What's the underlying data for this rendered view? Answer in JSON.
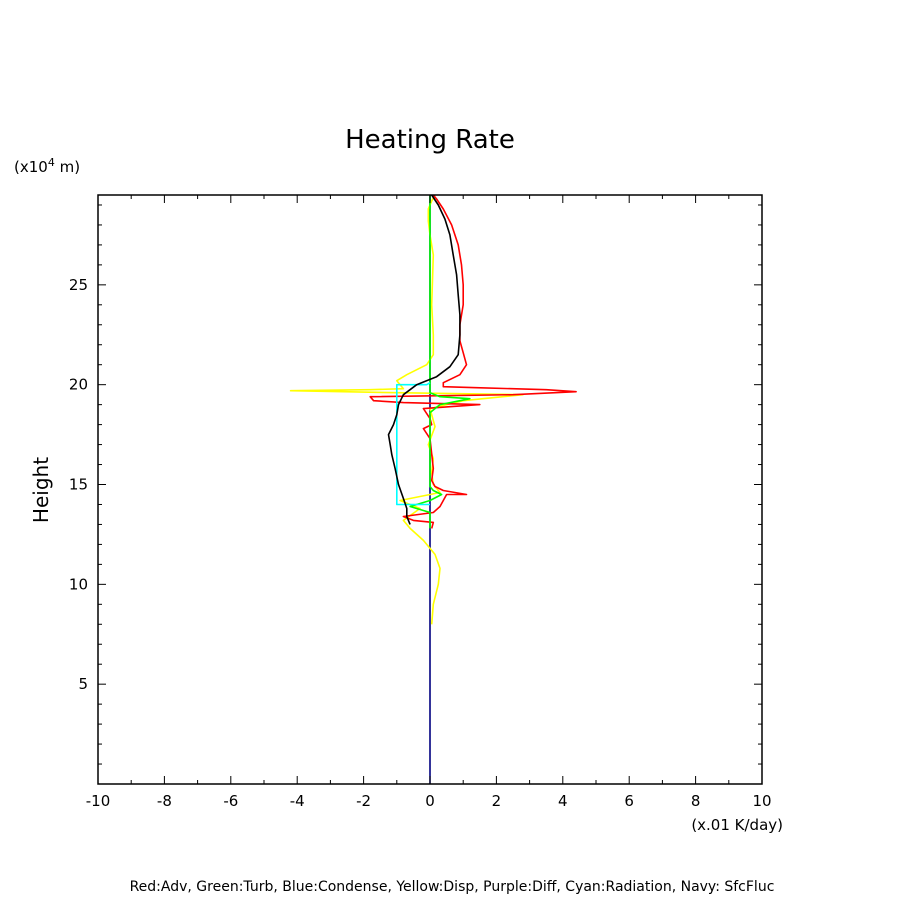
{
  "chart_data": {
    "type": "line",
    "title": "Heating Rate",
    "xlabel": "",
    "ylabel": "Height",
    "x_unit_label": "(x.01 K/day)",
    "y_unit_label_main": "(x10",
    "y_unit_label_sup": "4",
    "y_unit_label_tail": " m)",
    "xlim": [
      -10,
      10
    ],
    "ylim": [
      0,
      29.5
    ],
    "x_ticks": [
      -10,
      -8,
      -6,
      -4,
      -2,
      0,
      2,
      4,
      6,
      8,
      10
    ],
    "x_tick_labels": [
      "-10",
      "-8",
      "-6",
      "-4",
      "-2",
      "0",
      "2",
      "4",
      "6",
      "8",
      "10"
    ],
    "y_ticks": [
      5,
      10,
      15,
      20,
      25
    ],
    "y_tick_labels": [
      "5",
      "10",
      "15",
      "20",
      "25"
    ],
    "grid": false,
    "legend_note": "Red:Adv, Green:Turb, Blue:Condense, Yellow:Disp, Purple:Diff, Cyan:Radiation, Navy: SfcFluc",
    "series": [
      {
        "color": "#000080",
        "points": [
          [
            0,
            0
          ],
          [
            0,
            29.5
          ]
        ]
      },
      {
        "color": "#ffff00",
        "points": [
          [
            0.05,
            8.0
          ],
          [
            0.1,
            9.0
          ],
          [
            0.25,
            10.0
          ],
          [
            0.3,
            10.8
          ],
          [
            0.15,
            11.5
          ],
          [
            -0.2,
            12.2
          ],
          [
            -0.6,
            12.8
          ],
          [
            -0.8,
            13.2
          ],
          [
            -0.3,
            13.8
          ],
          [
            -0.9,
            14.2
          ],
          [
            0.3,
            14.6
          ],
          [
            0.1,
            15.0
          ],
          [
            0.05,
            15.6
          ],
          [
            0.1,
            16.3
          ],
          [
            -0.05,
            17.0
          ],
          [
            0.15,
            17.9
          ],
          [
            0.0,
            18.8
          ],
          [
            1.0,
            19.2
          ],
          [
            2.8,
            19.5
          ],
          [
            -1.0,
            19.6
          ],
          [
            -4.2,
            19.7
          ],
          [
            -1.8,
            19.75
          ],
          [
            -0.8,
            19.8
          ],
          [
            -1.0,
            20.2
          ],
          [
            -0.7,
            20.5
          ],
          [
            -0.1,
            21.0
          ],
          [
            0.1,
            21.5
          ],
          [
            0.1,
            22.5
          ],
          [
            0.05,
            24.0
          ],
          [
            0.1,
            26.5
          ],
          [
            0.0,
            27.5
          ],
          [
            -0.05,
            28.2
          ],
          [
            -0.05,
            28.8
          ],
          [
            0.05,
            29.2
          ],
          [
            0.15,
            29.5
          ]
        ]
      },
      {
        "color": "#ff0000",
        "points": [
          [
            0.05,
            12.8
          ],
          [
            0.1,
            13.1
          ],
          [
            -0.5,
            13.2
          ],
          [
            -0.8,
            13.4
          ],
          [
            0.1,
            13.6
          ],
          [
            0.3,
            13.9
          ],
          [
            0.4,
            14.2
          ],
          [
            0.5,
            14.5
          ],
          [
            1.1,
            14.5
          ],
          [
            0.4,
            14.7
          ],
          [
            0.15,
            14.9
          ],
          [
            0.05,
            15.2
          ],
          [
            0.1,
            15.8
          ],
          [
            0.0,
            17.3
          ],
          [
            -0.2,
            17.8
          ],
          [
            0.05,
            18.0
          ],
          [
            0.0,
            18.3
          ],
          [
            -0.2,
            18.8
          ],
          [
            1.5,
            19.0
          ],
          [
            -0.8,
            19.1
          ],
          [
            -1.7,
            19.2
          ],
          [
            -1.8,
            19.4
          ],
          [
            2.5,
            19.5
          ],
          [
            4.4,
            19.65
          ],
          [
            3.5,
            19.75
          ],
          [
            1.4,
            19.85
          ],
          [
            0.4,
            19.9
          ],
          [
            0.4,
            20.1
          ],
          [
            0.9,
            20.5
          ],
          [
            1.1,
            21.0
          ],
          [
            1.0,
            21.6
          ],
          [
            0.9,
            22.2
          ],
          [
            0.9,
            23.0
          ],
          [
            1.0,
            24.0
          ],
          [
            1.0,
            25.0
          ],
          [
            0.95,
            26.0
          ],
          [
            0.85,
            27.0
          ],
          [
            0.65,
            28.0
          ],
          [
            0.4,
            28.8
          ],
          [
            0.2,
            29.3
          ],
          [
            0.1,
            29.5
          ]
        ]
      },
      {
        "color": "#00ff00",
        "points": [
          [
            0.0,
            12.8
          ],
          [
            0.0,
            13.6
          ],
          [
            -0.6,
            13.9
          ],
          [
            0.0,
            14.2
          ],
          [
            0.35,
            14.5
          ],
          [
            0.1,
            14.7
          ],
          [
            0.0,
            14.9
          ],
          [
            0.0,
            18.6
          ],
          [
            0.3,
            19.0
          ],
          [
            0.9,
            19.2
          ],
          [
            1.2,
            19.3
          ],
          [
            0.3,
            19.4
          ],
          [
            0.0,
            19.6
          ],
          [
            0.0,
            29.5
          ]
        ]
      },
      {
        "color": "#00ffff",
        "points": [
          [
            0.0,
            14.0
          ],
          [
            -1.0,
            14.0
          ],
          [
            -1.0,
            20.0
          ],
          [
            -0.1,
            20.0
          ],
          [
            0.0,
            20.1
          ]
        ]
      },
      {
        "color": "#000000",
        "points": [
          [
            -0.6,
            13.0
          ],
          [
            -0.7,
            13.4
          ],
          [
            -0.7,
            13.8
          ],
          [
            -0.8,
            14.3
          ],
          [
            -0.95,
            15.0
          ],
          [
            -1.05,
            15.8
          ],
          [
            -1.15,
            16.5
          ],
          [
            -1.2,
            17.0
          ],
          [
            -1.25,
            17.5
          ],
          [
            -1.1,
            18.0
          ],
          [
            -1.0,
            18.5
          ],
          [
            -0.95,
            19.0
          ],
          [
            -0.8,
            19.5
          ],
          [
            -0.4,
            20.0
          ],
          [
            0.2,
            20.4
          ],
          [
            0.6,
            20.9
          ],
          [
            0.85,
            21.5
          ],
          [
            0.9,
            22.5
          ],
          [
            0.9,
            23.5
          ],
          [
            0.85,
            24.5
          ],
          [
            0.8,
            25.5
          ],
          [
            0.7,
            26.5
          ],
          [
            0.6,
            27.5
          ],
          [
            0.45,
            28.3
          ],
          [
            0.25,
            29.0
          ],
          [
            0.05,
            29.5
          ]
        ]
      }
    ]
  }
}
